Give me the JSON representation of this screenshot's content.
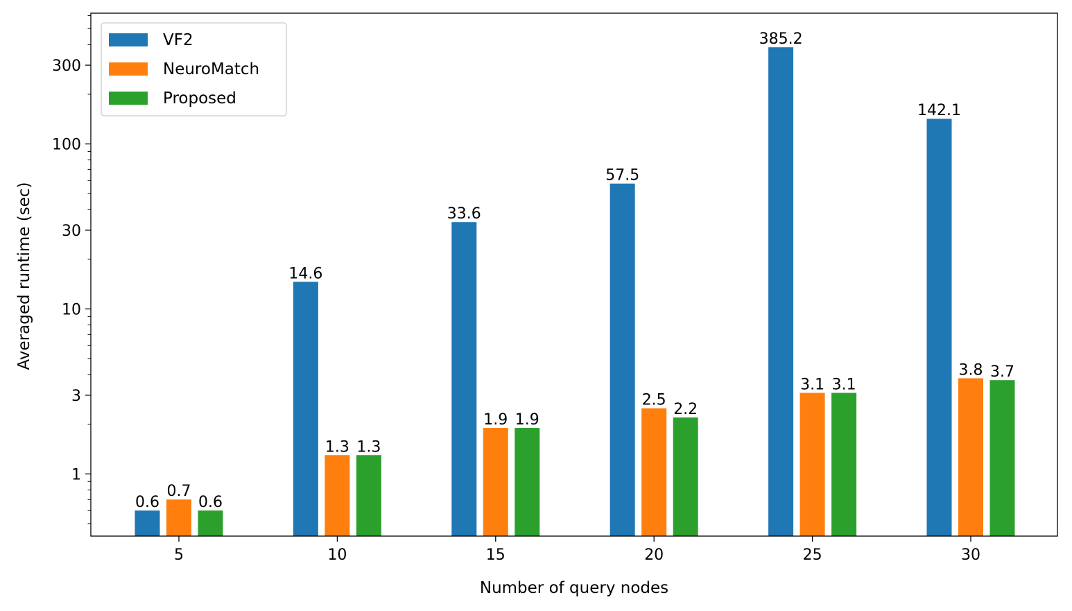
{
  "chart_data": {
    "type": "bar",
    "title": "",
    "xlabel": "Number of query nodes",
    "ylabel": "Averaged runtime (sec)",
    "yscale": "log",
    "ylim": [
      0.42,
      620
    ],
    "yticks": [
      1,
      3,
      10,
      30,
      100,
      300
    ],
    "ytick_labels": [
      "1",
      "3",
      "10",
      "30",
      "100",
      "300"
    ],
    "categories": [
      "5",
      "10",
      "15",
      "20",
      "25",
      "30"
    ],
    "series": [
      {
        "name": "VF2",
        "color": "#1f77b4",
        "values": [
          0.6,
          14.6,
          33.6,
          57.5,
          385.2,
          142.1
        ],
        "labels": [
          "0.6",
          "14.6",
          "33.6",
          "57.5",
          "385.2",
          "142.1"
        ]
      },
      {
        "name": "NeuroMatch",
        "color": "#ff7f0e",
        "values": [
          0.7,
          1.3,
          1.9,
          2.5,
          3.1,
          3.8
        ],
        "labels": [
          "0.7",
          "1.3",
          "1.9",
          "2.5",
          "3.1",
          "3.8"
        ]
      },
      {
        "name": "Proposed",
        "color": "#2ca02c",
        "values": [
          0.6,
          1.3,
          1.9,
          2.2,
          3.1,
          3.7
        ],
        "labels": [
          "0.6",
          "1.3",
          "1.9",
          "2.2",
          "3.1",
          "3.7"
        ]
      }
    ],
    "legend": "top-left",
    "grid": false
  }
}
